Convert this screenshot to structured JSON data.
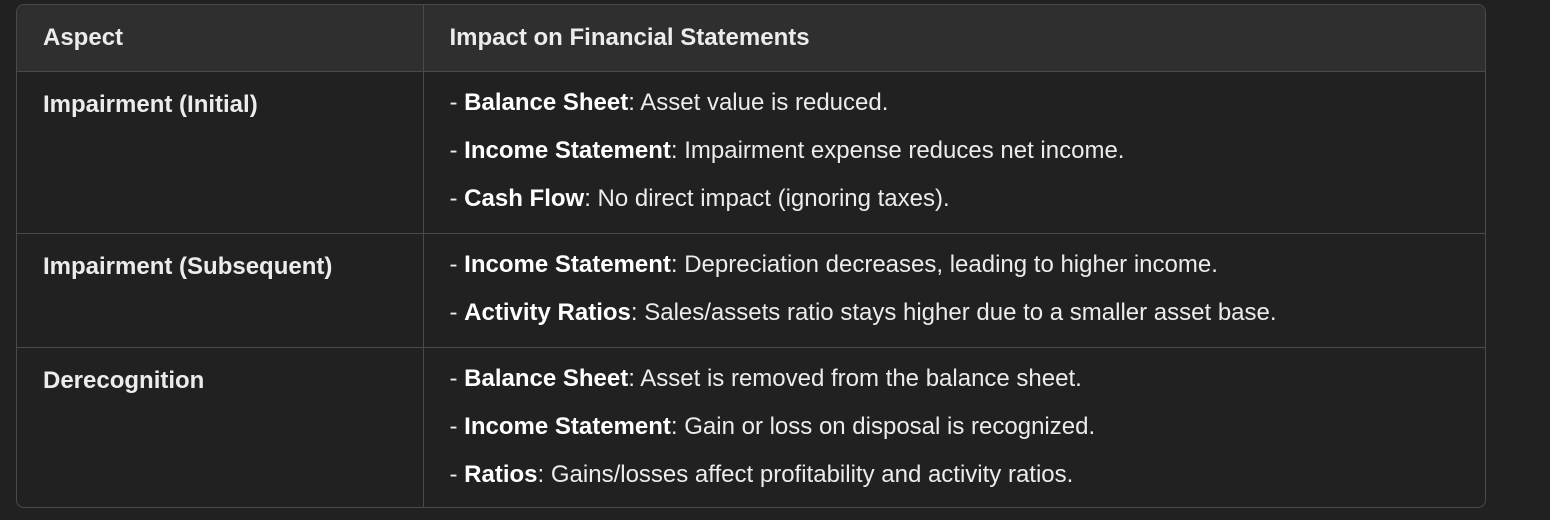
{
  "table": {
    "headers": [
      "Aspect",
      "Impact on Financial Statements"
    ],
    "rows": [
      {
        "aspect": "Impairment (Initial)",
        "impacts": [
          {
            "prefix": "- ",
            "label": "Balance Sheet",
            "text": ": Asset value is reduced."
          },
          {
            "prefix": "- ",
            "label": "Income Statement",
            "text": ": Impairment expense reduces net income."
          },
          {
            "prefix": "- ",
            "label": "Cash Flow",
            "text": ": No direct impact (ignoring taxes)."
          }
        ]
      },
      {
        "aspect": "Impairment (Subsequent)",
        "impacts": [
          {
            "prefix": "- ",
            "label": "Income Statement",
            "text": ": Depreciation decreases, leading to higher income."
          },
          {
            "prefix": "- ",
            "label": "Activity Ratios",
            "text": ": Sales/assets ratio stays higher due to a smaller asset base."
          }
        ]
      },
      {
        "aspect": "Derecognition",
        "impacts": [
          {
            "prefix": "- ",
            "label": "Balance Sheet",
            "text": ": Asset is removed from the balance sheet."
          },
          {
            "prefix": "- ",
            "label": "Income Statement",
            "text": ": Gain or loss on disposal is recognized."
          },
          {
            "prefix": "- ",
            "label": "Ratios",
            "text": ": Gains/losses affect profitability and activity ratios."
          }
        ]
      }
    ]
  },
  "colors": {
    "background": "#212121",
    "header_bg": "#2f2f2f",
    "border": "#4a4a4a",
    "text": "#ececec"
  }
}
